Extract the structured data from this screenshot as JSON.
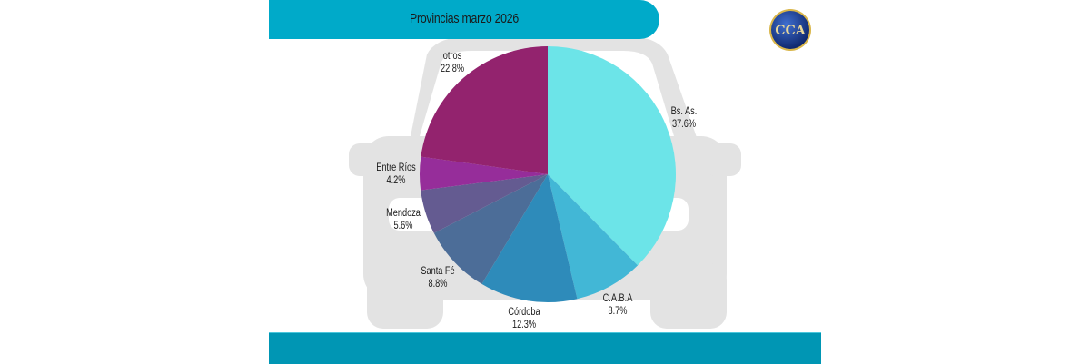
{
  "header": {
    "title": "Provincias marzo 2026"
  },
  "logo": {
    "text": "CCA",
    "icon": "cca-logo-icon"
  },
  "colors": {
    "title_bar": "#00aac9",
    "footer_bar": "#0096b4",
    "car_silhouette": "#e3e3e3"
  },
  "chart_data": {
    "type": "pie",
    "title": "Provincias marzo 2026",
    "start_angle_deg": 0,
    "direction": "clockwise",
    "categories": [
      "Bs. As.",
      "C.A.B.A",
      "Córdoba",
      "Santa Fé",
      "Mendoza",
      "Entre Ríos",
      "otros"
    ],
    "values": [
      37.6,
      8.7,
      12.3,
      8.8,
      5.6,
      4.2,
      22.8
    ],
    "labels": [
      "37.6%",
      "8.7%",
      "12.3%",
      "8.8%",
      "5.6%",
      "4.2%",
      "22.8%"
    ],
    "colors": [
      "#6ce4e8",
      "#42b7d6",
      "#2e8bba",
      "#4c6d98",
      "#645b91",
      "#962d9a",
      "#93236e"
    ],
    "unit": "%"
  },
  "slices": [
    {
      "name": "Bs. As.",
      "pct": "37.6%"
    },
    {
      "name": "C.A.B.A",
      "pct": "8.7%"
    },
    {
      "name": "Córdoba",
      "pct": "12.3%"
    },
    {
      "name": "Santa Fé",
      "pct": "8.8%"
    },
    {
      "name": "Mendoza",
      "pct": "5.6%"
    },
    {
      "name": "Entre Ríos",
      "pct": "4.2%"
    },
    {
      "name": "otros",
      "pct": "22.8%"
    }
  ]
}
